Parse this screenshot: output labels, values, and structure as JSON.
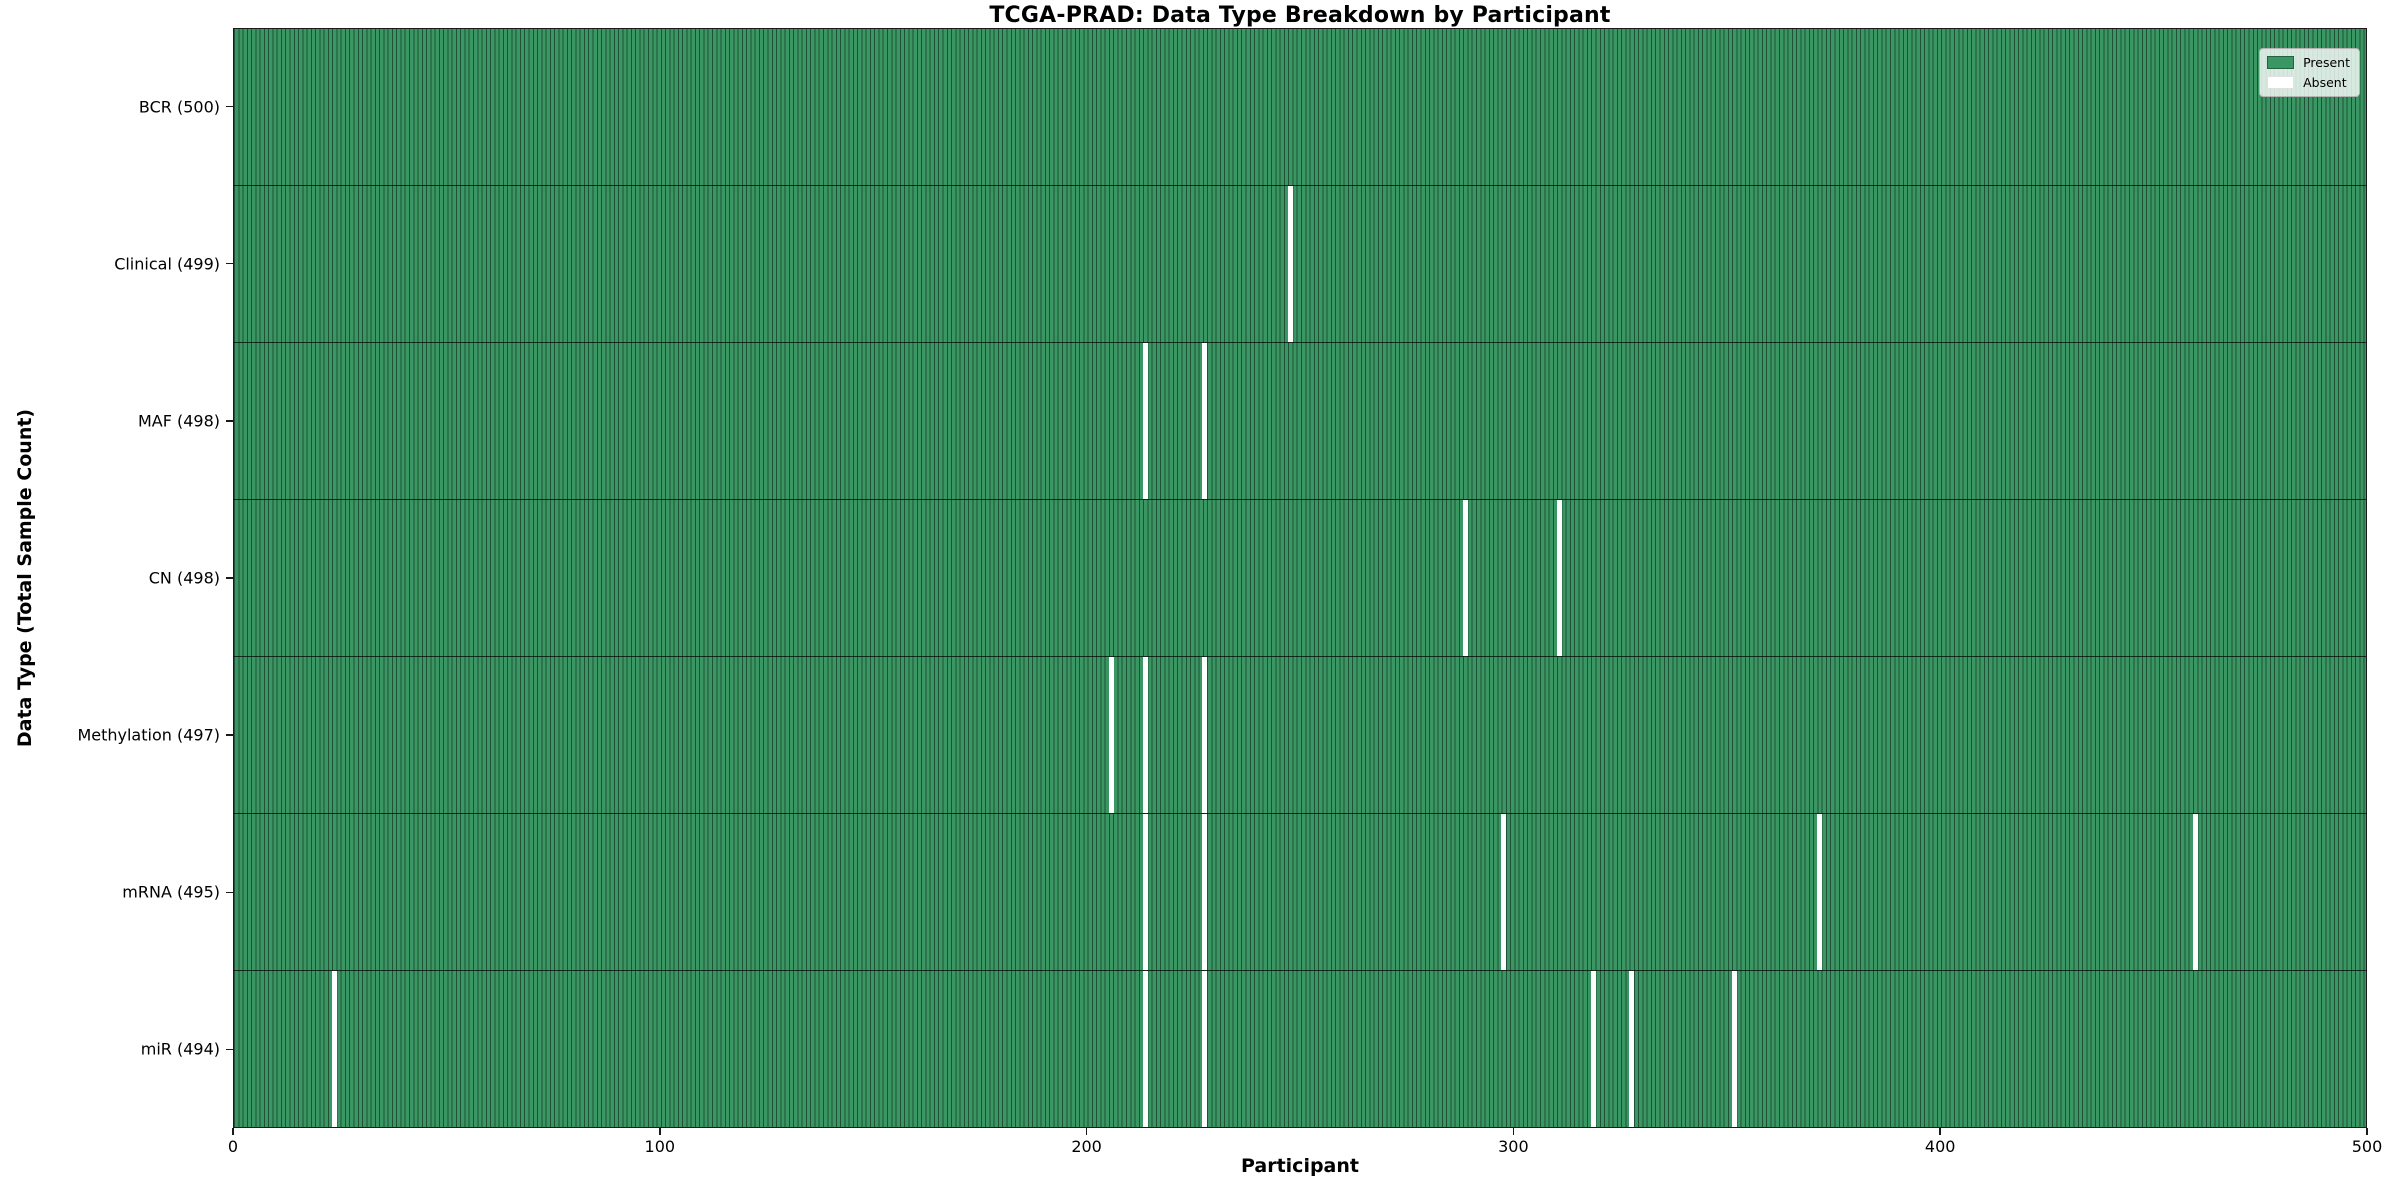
{
  "chart_data": {
    "type": "heatmap",
    "title": "TCGA-PRAD: Data Type Breakdown by Participant",
    "xlabel": "Participant",
    "ylabel": "Data Type (Total Sample Count)",
    "x_ticks": [
      0,
      100,
      200,
      300,
      400,
      500
    ],
    "x_range": [
      0,
      500
    ],
    "participants_total": 500,
    "grid": false,
    "legend": {
      "position": "upper right",
      "entries": [
        {
          "name": "present",
          "label": "Present",
          "color": "#3a9763"
        },
        {
          "name": "absent",
          "label": "Absent",
          "color": "#ffffff"
        }
      ]
    },
    "colors": {
      "present_fill": "#3a9763",
      "bar_edge": "#1e5136",
      "absent": "#ffffff",
      "spine": "#1a1a1a"
    },
    "rows": [
      {
        "name": "BCR",
        "label": "BCR (500)",
        "total": 500,
        "absent_participants": []
      },
      {
        "name": "Clinical",
        "label": "Clinical (499)",
        "total": 499,
        "absent_participants": [
          247
        ]
      },
      {
        "name": "MAF",
        "label": "MAF (498)",
        "total": 498,
        "absent_participants": [
          213,
          227
        ]
      },
      {
        "name": "CN",
        "label": "CN (498)",
        "total": 498,
        "absent_participants": [
          288,
          310
        ]
      },
      {
        "name": "Methylation",
        "label": "Methylation (497)",
        "total": 497,
        "absent_participants": [
          205,
          213,
          227
        ]
      },
      {
        "name": "mRNA",
        "label": "mRNA (495)",
        "total": 495,
        "absent_participants": [
          213,
          227,
          297,
          371,
          459
        ]
      },
      {
        "name": "miR",
        "label": "miR (494)",
        "total": 494,
        "absent_participants": [
          23,
          213,
          227,
          318,
          327,
          351
        ]
      }
    ]
  }
}
